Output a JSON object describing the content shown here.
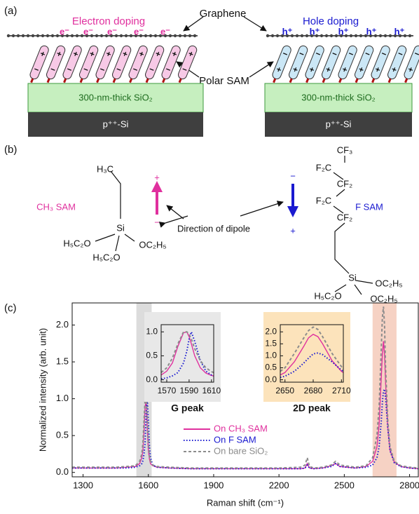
{
  "panel_labels": [
    "(a)",
    "(b)",
    "(c)"
  ],
  "panel_a": {
    "electron_doping": "Electron doping",
    "hole_doping": "Hole doping",
    "graphene": "Graphene",
    "polar_sam": "Polar SAM",
    "sio2": [
      "300-nm-thick SiO₂",
      "300-nm-thick SiO₂"
    ],
    "si": [
      "p⁺⁺-Si",
      "p⁺⁺-Si"
    ],
    "electrons": [
      "e⁻",
      "e⁻",
      "e⁻",
      "e⁻",
      "e⁻"
    ],
    "holes": [
      "h⁺",
      "h⁺",
      "h⁺",
      "h⁺",
      "h⁺"
    ]
  },
  "panel_b": {
    "ch3_sam": "CH₃ SAM",
    "f_sam": "F SAM",
    "direction": "Direction of dipole",
    "ch3_signs": [
      "+",
      "−"
    ],
    "f_signs": [
      "−",
      "+"
    ],
    "ch3_structure": [
      "H₃C",
      "Si",
      "H₅C₂O",
      "OC₂H₅",
      "H₅C₂O"
    ],
    "f_structure": [
      "CF₃",
      "F₂C",
      "CF₂",
      "F₂C",
      "CF₂",
      "Si",
      "OC₂H₅",
      "H₅C₂O",
      "OC₂H₅"
    ]
  },
  "chart_data": [
    {
      "type": "line",
      "xlabel": "Raman shift (cm⁻¹)",
      "ylabel": "Normalized intensity (arb. unit)",
      "xlim": [
        1250,
        2840
      ],
      "ylim": [
        -0.06,
        2.3
      ],
      "xticks": [
        1300,
        1600,
        1900,
        2200,
        2500,
        2800
      ],
      "yticks": [
        {
          "value": 0,
          "label": "0.0"
        },
        {
          "value": 0.5,
          "label": "0.5"
        },
        {
          "value": 1,
          "label": "1.0"
        },
        {
          "value": 1.5,
          "label": "1.5"
        },
        {
          "value": 2,
          "label": "2.0"
        }
      ],
      "bands": [
        {
          "xlim": [
            1545,
            1615
          ],
          "color": "#dcdcdc"
        },
        {
          "xlim": [
            2630,
            2740
          ],
          "color": "#f6d2c4"
        }
      ],
      "x": [
        1250,
        1300,
        1350,
        1400,
        1450,
        1500,
        1540,
        1560,
        1570,
        1575,
        1580,
        1585,
        1590,
        1595,
        1600,
        1605,
        1610,
        1620,
        1640,
        1700,
        1800,
        1900,
        2000,
        2100,
        2200,
        2300,
        2320,
        2330,
        2340,
        2360,
        2400,
        2440,
        2460,
        2480,
        2550,
        2600,
        2630,
        2650,
        2660,
        2670,
        2675,
        2680,
        2685,
        2690,
        2700,
        2710,
        2730,
        2760,
        2800,
        2840
      ],
      "series": [
        {
          "name": "On CH₃ SAM",
          "color": "#e0309e",
          "dash": "solid",
          "values": [
            0.06,
            0.06,
            0.06,
            0.06,
            0.06,
            0.07,
            0.08,
            0.12,
            0.2,
            0.3,
            0.55,
            0.9,
            0.95,
            0.6,
            0.3,
            0.18,
            0.12,
            0.09,
            0.07,
            0.06,
            0.05,
            0.05,
            0.05,
            0.05,
            0.05,
            0.05,
            0.06,
            0.12,
            0.06,
            0.05,
            0.06,
            0.09,
            0.12,
            0.08,
            0.06,
            0.08,
            0.15,
            0.35,
            0.65,
            1.3,
            1.6,
            1.78,
            1.6,
            1.2,
            0.6,
            0.3,
            0.14,
            0.08,
            0.06,
            0.05
          ]
        },
        {
          "name": "On F SAM",
          "color": "#1a1ad0",
          "dash": "dotted",
          "values": [
            0.06,
            0.06,
            0.06,
            0.06,
            0.06,
            0.06,
            0.07,
            0.09,
            0.12,
            0.16,
            0.25,
            0.4,
            0.8,
            1.0,
            0.7,
            0.35,
            0.2,
            0.1,
            0.07,
            0.06,
            0.05,
            0.05,
            0.05,
            0.05,
            0.05,
            0.05,
            0.06,
            0.1,
            0.06,
            0.05,
            0.06,
            0.08,
            0.12,
            0.08,
            0.06,
            0.07,
            0.1,
            0.2,
            0.35,
            0.7,
            0.95,
            1.1,
            1.13,
            1.0,
            0.6,
            0.3,
            0.13,
            0.08,
            0.06,
            0.05
          ]
        },
        {
          "name": "On bare SiO₂",
          "color": "#8c8c8c",
          "dash": "dashed",
          "values": [
            0.07,
            0.07,
            0.07,
            0.07,
            0.07,
            0.08,
            0.09,
            0.15,
            0.25,
            0.4,
            0.7,
            1.0,
            1.05,
            0.75,
            0.4,
            0.22,
            0.15,
            0.1,
            0.08,
            0.07,
            0.06,
            0.06,
            0.06,
            0.06,
            0.06,
            0.07,
            0.1,
            0.2,
            0.08,
            0.06,
            0.07,
            0.1,
            0.15,
            0.1,
            0.07,
            0.09,
            0.2,
            0.5,
            0.9,
            1.7,
            2.1,
            2.25,
            2.0,
            1.4,
            0.7,
            0.35,
            0.15,
            0.09,
            0.07,
            0.06
          ]
        }
      ]
    },
    {
      "type": "line",
      "label": "G peak",
      "background": "#e8e8e8",
      "xlim": [
        1565,
        1612
      ],
      "ylim": [
        -0.05,
        1.15
      ],
      "xticks": [
        1570,
        1590,
        1610
      ],
      "yticks": [
        {
          "value": 0,
          "label": "0.0"
        },
        {
          "value": 0.5,
          "label": "0.5"
        },
        {
          "value": 1,
          "label": "1.0"
        }
      ],
      "x": [
        1565,
        1570,
        1575,
        1580,
        1585,
        1588,
        1590,
        1592,
        1595,
        1600,
        1605,
        1610,
        1612
      ],
      "series": [
        {
          "color": "#e0309e",
          "dash": "solid",
          "values": [
            0.1,
            0.18,
            0.35,
            0.7,
            0.98,
            1.0,
            0.9,
            0.75,
            0.5,
            0.25,
            0.14,
            0.09,
            0.08
          ]
        },
        {
          "color": "#1a1ad0",
          "dash": "dotted",
          "values": [
            0.02,
            0.04,
            0.08,
            0.15,
            0.35,
            0.6,
            0.85,
            1.0,
            0.8,
            0.4,
            0.18,
            0.1,
            0.08
          ]
        },
        {
          "color": "#8c8c8c",
          "dash": "dashed",
          "values": [
            0.15,
            0.25,
            0.45,
            0.75,
            1.0,
            1.0,
            0.95,
            0.85,
            0.65,
            0.4,
            0.25,
            0.17,
            0.15
          ]
        }
      ]
    },
    {
      "type": "line",
      "label": "2D peak",
      "background": "#fce3bb",
      "xlim": [
        2645,
        2712
      ],
      "ylim": [
        -0.1,
        2.3
      ],
      "xticks": [
        2650,
        2680,
        2710
      ],
      "yticks": [
        {
          "value": 0,
          "label": "0.0"
        },
        {
          "value": 0.5,
          "label": "0.5"
        },
        {
          "value": 1,
          "label": "1.0"
        },
        {
          "value": 1.5,
          "label": "1.5"
        },
        {
          "value": 2,
          "label": "2.0"
        }
      ],
      "x": [
        2645,
        2650,
        2660,
        2670,
        2675,
        2680,
        2685,
        2690,
        2700,
        2710,
        2712
      ],
      "series": [
        {
          "color": "#e0309e",
          "dash": "solid",
          "values": [
            0.2,
            0.3,
            0.75,
            1.4,
            1.75,
            1.9,
            1.8,
            1.5,
            0.8,
            0.35,
            0.3
          ]
        },
        {
          "color": "#1a1ad0",
          "dash": "dotted",
          "values": [
            0.1,
            0.15,
            0.35,
            0.7,
            0.9,
            1.08,
            1.12,
            1.05,
            0.75,
            0.4,
            0.35
          ]
        },
        {
          "color": "#8c8c8c",
          "dash": "dashed",
          "values": [
            0.35,
            0.5,
            1.1,
            1.75,
            2.05,
            2.2,
            2.1,
            1.8,
            1.1,
            0.55,
            0.45
          ]
        }
      ]
    }
  ]
}
